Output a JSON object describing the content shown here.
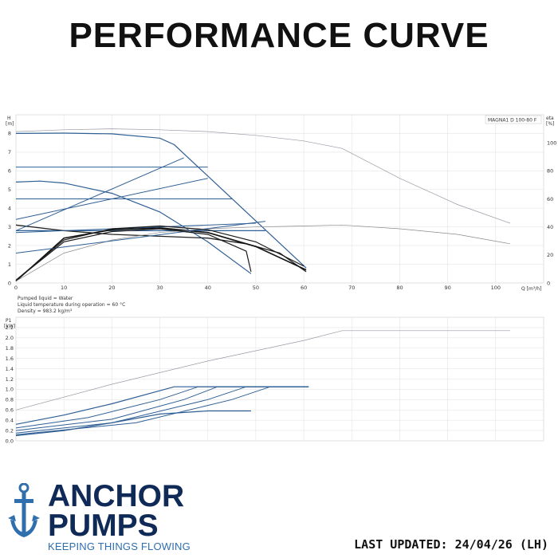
{
  "title": "PERFORMANCE CURVE",
  "chart_data": [
    {
      "type": "line",
      "model_label": "MAGNA1 D 100-80 F",
      "y_left_label": "H",
      "y_left_unit": "[m]",
      "y_right_label": "eta",
      "y_right_unit": "[%]",
      "x_label": "Q [m³/h]",
      "x_ticks": [
        0,
        10,
        20,
        30,
        40,
        50,
        60,
        70,
        80,
        90,
        100
      ],
      "y_left_ticks": [
        0,
        1,
        2,
        3,
        4,
        5,
        6,
        7,
        8
      ],
      "y_right_ticks": [
        0,
        20,
        40,
        60,
        80,
        100
      ],
      "xlim": [
        0,
        110
      ],
      "ylim": [
        0,
        9
      ],
      "info_lines": [
        "Pumped liquid = Water",
        "Liquid temperature during operation = 60 °C",
        "Density = 983.2 kg/m³"
      ],
      "series": [
        {
          "values": [
            [
              0,
              8.0
            ],
            [
              10,
              8.02
            ],
            [
              20,
              7.98
            ],
            [
              30,
              7.75
            ],
            [
              33,
              7.4
            ],
            [
              60.5,
              0.8
            ]
          ]
        },
        {
          "values": [
            [
              0,
              5.4
            ],
            [
              5,
              5.45
            ],
            [
              10,
              5.35
            ],
            [
              20,
              4.8
            ],
            [
              30,
              3.8
            ],
            [
              40,
              2.2
            ],
            [
              49,
              0.5
            ]
          ]
        },
        {
          "values": [
            [
              0,
              2.8
            ],
            [
              52,
              2.8
            ]
          ]
        },
        {
          "values": [
            [
              0,
              3.1
            ],
            [
              10,
              2.8
            ],
            [
              20,
              2.6
            ],
            [
              30,
              2.5
            ],
            [
              40,
              2.4
            ],
            [
              48,
              2.1
            ],
            [
              55,
              1.6
            ],
            [
              60.5,
              0.6
            ]
          ]
        },
        {
          "values": [
            [
              0,
              0.1
            ],
            [
              10,
              2.4
            ],
            [
              20,
              2.85
            ],
            [
              30,
              2.95
            ],
            [
              40,
              2.7
            ],
            [
              50,
              1.95
            ],
            [
              60.5,
              0.7
            ]
          ]
        },
        {
          "values": [
            [
              0,
              8.1
            ],
            [
              10,
              8.2
            ],
            [
              20,
              8.25
            ],
            [
              30,
              8.2
            ],
            [
              40,
              8.1
            ],
            [
              50,
              7.9
            ],
            [
              60,
              7.6
            ],
            [
              68,
              7.2
            ],
            [
              80,
              5.6
            ],
            [
              92,
              4.2
            ],
            [
              103,
              3.2
            ]
          ]
        },
        {
          "values": [
            [
              0,
              0.1
            ],
            [
              10,
              1.6
            ],
            [
              20,
              2.3
            ],
            [
              30,
              2.7
            ],
            [
              40,
              2.9
            ],
            [
              50,
              3.0
            ],
            [
              60,
              3.05
            ],
            [
              68,
              3.1
            ],
            [
              80,
              2.9
            ],
            [
              92,
              2.6
            ],
            [
              103,
              2.1
            ]
          ]
        }
      ]
    },
    {
      "type": "line",
      "y_label": "P1",
      "y_unit": "[kW]",
      "y_ticks": [
        0,
        0.2,
        0.4,
        0.6,
        0.8,
        1.0,
        1.2,
        1.4,
        1.6,
        1.8,
        2.0,
        2.2
      ],
      "xlim": [
        0,
        110
      ],
      "ylim": [
        0,
        2.4
      ],
      "series": [
        {
          "values": [
            [
              0,
              0.32
            ],
            [
              10,
              0.5
            ],
            [
              20,
              0.72
            ],
            [
              33,
              1.05
            ],
            [
              61,
              1.05
            ]
          ]
        },
        {
          "values": [
            [
              0,
              0.1
            ],
            [
              10,
              0.2
            ],
            [
              20,
              0.35
            ],
            [
              30,
              0.52
            ],
            [
              40,
              0.58
            ],
            [
              49,
              0.58
            ]
          ]
        },
        {
          "values": [
            [
              0,
              0.6
            ],
            [
              20,
              1.1
            ],
            [
              40,
              1.55
            ],
            [
              60,
              1.95
            ],
            [
              68,
              2.14
            ],
            [
              103,
              2.14
            ]
          ]
        }
      ]
    }
  ],
  "logo": {
    "line1": "ANCHOR",
    "line2": "PUMPS",
    "tagline": "KEEPING THINGS FLOWING"
  },
  "footer": {
    "updated": "LAST UPDATED: 24/04/26 (LH)"
  }
}
